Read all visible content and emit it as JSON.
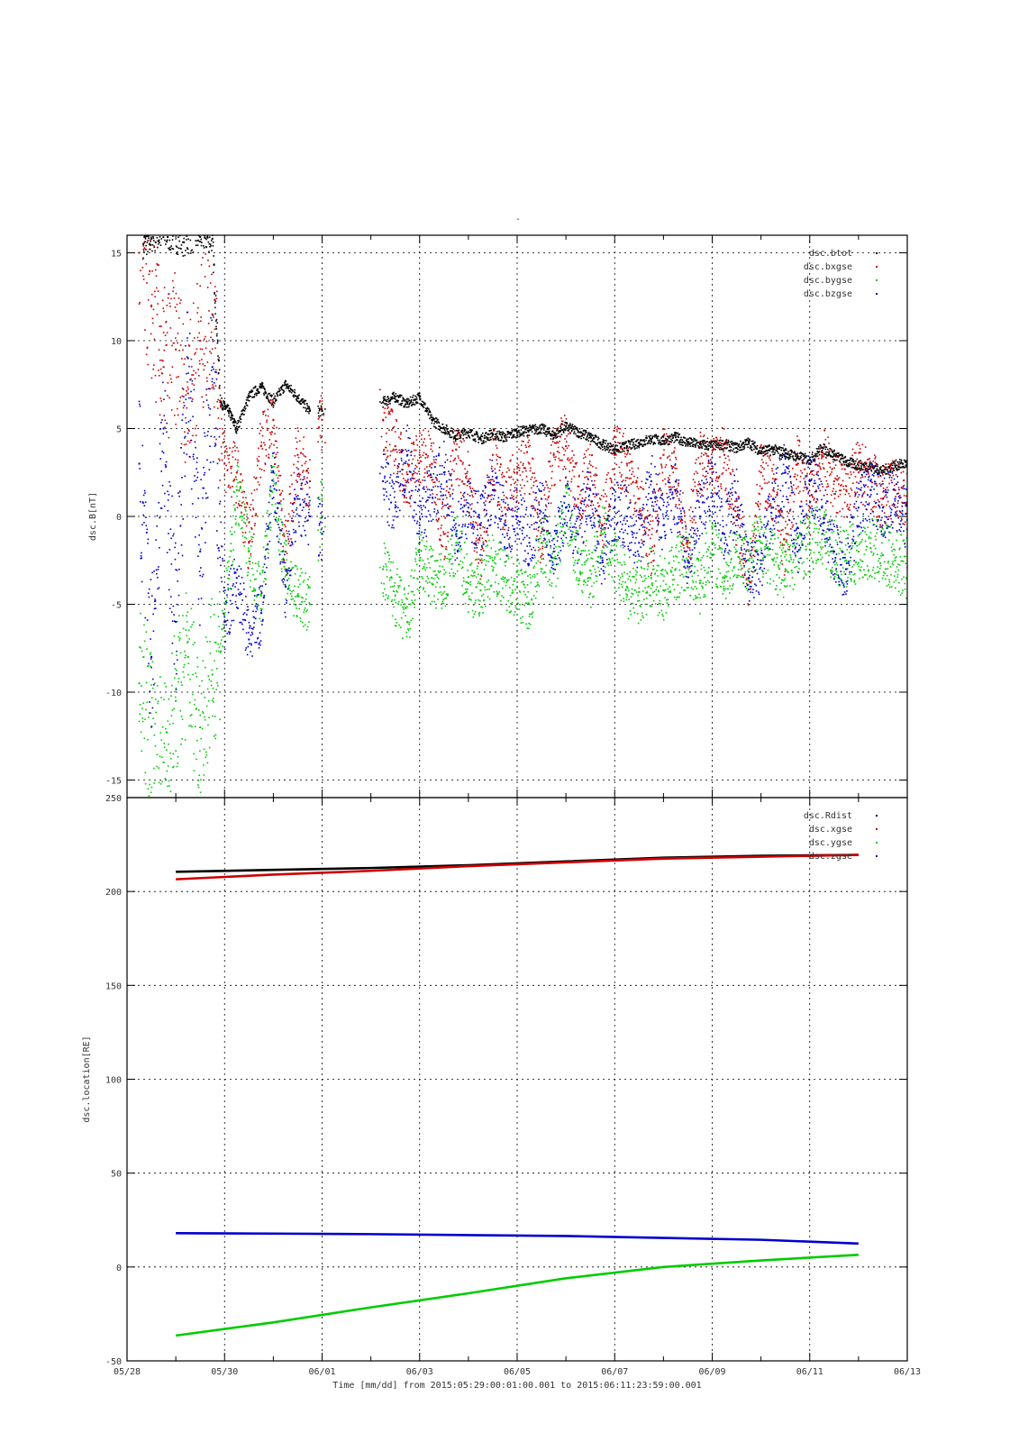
{
  "chart_data": [
    {
      "type": "scatter",
      "title": "-",
      "ylabel": "dsc.B[nT]",
      "ylim": [
        -16,
        16
      ],
      "yticks": [
        -15,
        -10,
        -5,
        0,
        5,
        10,
        15
      ],
      "grid": true,
      "legend_position": "top-right",
      "series": [
        {
          "name": "dsc.btot",
          "color": "#000000",
          "x": [
            "05/28 08:00",
            "05/28 12:00",
            "05/28 20:00",
            "05/29 04:00",
            "05/29 12:00",
            "05/29 18:00",
            "05/29 22:00",
            "05/30 02:00",
            "05/30 06:00",
            "05/30 12:00",
            "05/30 18:00",
            "05/31 00:00",
            "05/31 06:00",
            "05/31 12:00",
            "05/31 18:00",
            "06/01 00:00",
            "06/02 06:00",
            "06/02 12:00",
            "06/02 18:00",
            "06/03 00:00",
            "06/03 06:00",
            "06/03 12:00",
            "06/03 18:00",
            "06/04 00:00",
            "06/04 06:00",
            "06/04 12:00",
            "06/04 18:00",
            "06/05 00:00",
            "06/05 06:00",
            "06/05 12:00",
            "06/05 18:00",
            "06/06 00:00",
            "06/06 06:00",
            "06/06 12:00",
            "06/06 18:00",
            "06/07 00:00",
            "06/07 06:00",
            "06/07 12:00",
            "06/07 18:00",
            "06/08 00:00",
            "06/08 06:00",
            "06/08 12:00",
            "06/08 18:00",
            "06/09 00:00",
            "06/09 06:00",
            "06/09 12:00",
            "06/09 18:00",
            "06/10 00:00",
            "06/10 06:00",
            "06/10 12:00",
            "06/10 18:00",
            "06/11 00:00",
            "06/11 06:00",
            "06/11 12:00",
            "06/11 18:00",
            "06/12 00:00",
            "06/12 06:00",
            "06/12 12:00",
            "06/12 18:00",
            "06/13 00:00"
          ],
          "y": [
            15.5,
            15.8,
            15.9,
            15.6,
            15.9,
            15.8,
            6.5,
            6.0,
            5.0,
            6.8,
            7.4,
            6.5,
            7.5,
            6.8,
            6.0,
            6.0,
            6.5,
            6.8,
            6.4,
            6.8,
            5.5,
            5.0,
            4.6,
            4.8,
            4.4,
            4.7,
            4.5,
            4.8,
            4.9,
            5.0,
            4.6,
            5.1,
            4.8,
            4.5,
            4.1,
            3.8,
            4.0,
            4.2,
            4.4,
            4.3,
            4.5,
            4.2,
            4.1,
            4.0,
            4.1,
            3.9,
            4.2,
            3.7,
            3.8,
            3.6,
            3.4,
            3.2,
            3.9,
            3.5,
            3.1,
            2.9,
            2.8,
            2.6,
            2.9,
            3.0
          ]
        },
        {
          "name": "dsc.bxgse",
          "color": "#cc0000",
          "x": [
            "05/28 06:00",
            "05/28 12:00",
            "05/28 18:00",
            "05/29 00:00",
            "05/29 06:00",
            "05/29 12:00",
            "05/29 18:00",
            "05/30 00:00",
            "05/30 06:00",
            "05/30 12:00",
            "05/30 18:00",
            "05/31 00:00",
            "05/31 06:00",
            "05/31 12:00",
            "05/31 18:00",
            "06/01 00:00",
            "06/02 06:00",
            "06/02 12:00",
            "06/02 18:00",
            "06/03 00:00",
            "06/03 06:00",
            "06/03 12:00",
            "06/03 18:00",
            "06/04 00:00",
            "06/04 06:00",
            "06/04 12:00",
            "06/04 18:00",
            "06/05 00:00",
            "06/05 06:00",
            "06/05 12:00",
            "06/05 18:00",
            "06/06 00:00",
            "06/06 06:00",
            "06/06 12:00",
            "06/06 18:00",
            "06/07 00:00",
            "06/07 06:00",
            "06/07 12:00",
            "06/07 18:00",
            "06/08 00:00",
            "06/08 06:00",
            "06/08 12:00",
            "06/08 18:00",
            "06/09 00:00",
            "06/09 06:00",
            "06/09 12:00",
            "06/09 18:00",
            "06/10 00:00",
            "06/10 06:00",
            "06/10 12:00",
            "06/10 18:00",
            "06/11 00:00",
            "06/11 06:00",
            "06/11 12:00",
            "06/11 18:00",
            "06/12 00:00",
            "06/12 06:00",
            "06/12 12:00",
            "06/12 18:00",
            "06/13 00:00"
          ],
          "y": [
            15.0,
            12.0,
            8.5,
            9.5,
            7.0,
            10.0,
            11.5,
            3.0,
            2.5,
            -1.5,
            4.0,
            5.5,
            -2.0,
            3.5,
            2.0,
            5.5,
            5.5,
            4.0,
            2.0,
            3.5,
            3.0,
            -1.0,
            3.8,
            2.0,
            -2.5,
            3.5,
            0.5,
            2.5,
            3.0,
            -1.5,
            3.5,
            4.0,
            1.0,
            2.5,
            -0.5,
            3.5,
            3.0,
            1.0,
            -2.0,
            3.5,
            2.0,
            -1.5,
            3.0,
            2.5,
            3.5,
            0.0,
            -3.5,
            2.5,
            1.5,
            -2.0,
            3.0,
            0.5,
            3.5,
            2.0,
            1.5,
            2.5,
            2.0,
            1.0,
            1.5,
            0.8
          ]
        },
        {
          "name": "dsc.bygse",
          "color": "#00cc00",
          "x": [
            "05/28 06:00",
            "05/28 12:00",
            "05/28 18:00",
            "05/29 00:00",
            "05/29 06:00",
            "05/29 12:00",
            "05/29 18:00",
            "05/30 00:00",
            "05/30 06:00",
            "05/30 12:00",
            "05/30 18:00",
            "05/31 00:00",
            "05/31 06:00",
            "05/31 12:00",
            "05/31 18:00",
            "06/01 00:00",
            "06/02 06:00",
            "06/02 12:00",
            "06/02 18:00",
            "06/03 00:00",
            "06/03 06:00",
            "06/03 12:00",
            "06/03 18:00",
            "06/04 00:00",
            "06/04 06:00",
            "06/04 12:00",
            "06/04 18:00",
            "06/05 00:00",
            "06/05 06:00",
            "06/05 12:00",
            "06/05 18:00",
            "06/06 00:00",
            "06/06 06:00",
            "06/06 12:00",
            "06/06 18:00",
            "06/07 00:00",
            "06/07 06:00",
            "06/07 12:00",
            "06/07 18:00",
            "06/08 00:00",
            "06/08 06:00",
            "06/08 12:00",
            "06/08 18:00",
            "06/09 00:00",
            "06/09 06:00",
            "06/09 12:00",
            "06/09 18:00",
            "06/10 00:00",
            "06/10 06:00",
            "06/10 12:00",
            "06/10 18:00",
            "06/11 00:00",
            "06/11 06:00",
            "06/11 12:00",
            "06/11 18:00",
            "06/12 00:00",
            "06/12 06:00",
            "06/12 12:00",
            "06/12 18:00",
            "06/13 00:00"
          ],
          "y": [
            -9.5,
            -12.0,
            -14.0,
            -10.5,
            -8.0,
            -12.0,
            -9.0,
            -6.0,
            1.5,
            -2.0,
            -4.5,
            2.0,
            -3.0,
            -4.5,
            -5.0,
            1.0,
            -3.0,
            -4.5,
            -6.0,
            -2.5,
            -3.5,
            -4.0,
            -1.5,
            -3.8,
            -4.2,
            -2.5,
            -3.5,
            -4.0,
            -5.0,
            -1.5,
            -3.0,
            0.5,
            -2.5,
            -3.5,
            -1.0,
            -2.5,
            -4.0,
            -4.3,
            -3.5,
            -4.2,
            -3.0,
            -2.5,
            -3.8,
            -1.5,
            -3.5,
            -2.0,
            -2.5,
            -1.5,
            -2.5,
            -3.0,
            -2.0,
            -1.5,
            -1.0,
            -2.0,
            -2.5,
            -2.0,
            -1.8,
            -2.2,
            -2.5,
            -2.9
          ]
        },
        {
          "name": "dsc.bzgse",
          "color": "#0000cc",
          "x": [
            "05/28 06:00",
            "05/28 12:00",
            "05/28 18:00",
            "05/29 00:00",
            "05/29 06:00",
            "05/29 12:00",
            "05/29 18:00",
            "05/30 00:00",
            "05/30 06:00",
            "05/30 12:00",
            "05/30 18:00",
            "05/31 00:00",
            "05/31 06:00",
            "05/31 12:00",
            "05/31 18:00",
            "06/01 00:00",
            "06/02 06:00",
            "06/02 12:00",
            "06/02 18:00",
            "06/03 00:00",
            "06/03 06:00",
            "06/03 12:00",
            "06/03 18:00",
            "06/04 00:00",
            "06/04 06:00",
            "06/04 12:00",
            "06/04 18:00",
            "06/05 00:00",
            "06/05 06:00",
            "06/05 12:00",
            "06/05 18:00",
            "06/06 00:00",
            "06/06 06:00",
            "06/06 12:00",
            "06/06 18:00",
            "06/07 00:00",
            "06/07 06:00",
            "06/07 12:00",
            "06/07 18:00",
            "06/08 00:00",
            "06/08 06:00",
            "06/08 12:00",
            "06/08 18:00",
            "06/09 00:00",
            "06/09 06:00",
            "06/09 12:00",
            "06/09 18:00",
            "06/10 00:00",
            "06/10 06:00",
            "06/10 12:00",
            "06/10 18:00",
            "06/11 00:00",
            "06/11 06:00",
            "06/11 12:00",
            "06/11 18:00",
            "06/12 00:00",
            "06/12 06:00",
            "06/12 12:00",
            "06/12 18:00",
            "06/13 00:00"
          ],
          "y": [
            3.0,
            -8.0,
            5.0,
            -6.0,
            9.0,
            -2.0,
            8.5,
            -6.0,
            -3.5,
            -7.0,
            -5.5,
            2.5,
            -4.0,
            1.0,
            0.0,
            -1.0,
            2.0,
            0.5,
            3.5,
            -0.5,
            1.5,
            2.5,
            -1.0,
            0.5,
            -0.5,
            1.5,
            -0.5,
            0.0,
            -1.5,
            1.0,
            -2.0,
            0.5,
            -1.0,
            1.5,
            -2.5,
            0.5,
            0.0,
            -1.5,
            2.0,
            -0.5,
            1.5,
            -2.5,
            0.0,
            2.0,
            -1.0,
            1.0,
            -3.5,
            -2.5,
            0.5,
            2.5,
            -2.0,
            2.0,
            0.5,
            -2.0,
            -3.0,
            0.5,
            1.5,
            0.5,
            1.0,
            -0.2
          ]
        }
      ]
    },
    {
      "type": "line",
      "xlabel": "Time [mm/dd]  from 2015:05:29:00:01:00.001  to  2015:06:11:23:59:00.001",
      "ylabel": "dsc.location[RE]",
      "ylim": [
        -50,
        250
      ],
      "yticks": [
        -50,
        0,
        50,
        100,
        150,
        200,
        250
      ],
      "grid": true,
      "legend_position": "top-right",
      "series": [
        {
          "name": "dsc.Rdist",
          "color": "#000000",
          "x": [
            "05/29",
            "05/31",
            "06/02",
            "06/04",
            "06/06",
            "06/08",
            "06/10",
            "06/12"
          ],
          "y": [
            210.5,
            211.5,
            212.5,
            214.0,
            216.0,
            218.0,
            219.0,
            219.5
          ]
        },
        {
          "name": "dsc.xgse",
          "color": "#cc0000",
          "x": [
            "05/29",
            "05/31",
            "06/02",
            "06/04",
            "06/06",
            "06/08",
            "06/10",
            "06/12"
          ],
          "y": [
            206.5,
            209.0,
            211.0,
            213.5,
            215.5,
            217.5,
            218.5,
            219.5
          ]
        },
        {
          "name": "dsc.ygse",
          "color": "#00cc00",
          "x": [
            "05/29",
            "05/31",
            "06/02",
            "06/04",
            "06/06",
            "06/08",
            "06/10",
            "06/12"
          ],
          "y": [
            -36.5,
            -29.5,
            -21.5,
            -14.0,
            -6.0,
            0.0,
            3.5,
            6.5
          ]
        },
        {
          "name": "dsc.zgse",
          "color": "#0000cc",
          "x": [
            "05/29",
            "05/31",
            "06/02",
            "06/04",
            "06/06",
            "06/08",
            "06/10",
            "06/12"
          ],
          "y": [
            18.0,
            17.8,
            17.5,
            17.0,
            16.5,
            15.5,
            14.5,
            12.5
          ]
        }
      ]
    }
  ],
  "x_axis": {
    "range": [
      "05/28",
      "06/13"
    ],
    "ticks": [
      "05/28",
      "05/30",
      "06/01",
      "06/03",
      "06/05",
      "06/07",
      "06/09",
      "06/11",
      "06/13"
    ]
  }
}
